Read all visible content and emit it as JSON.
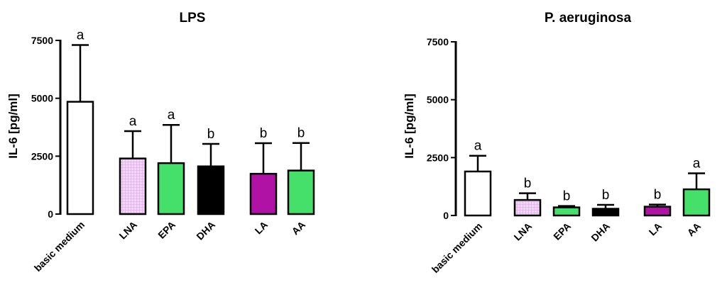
{
  "chart_data": [
    {
      "type": "bar",
      "title": "LPS",
      "ylabel": "IL-6 [pg/ml]",
      "ylim": [
        0,
        7500
      ],
      "yticks": [
        "0",
        "2500",
        "5000",
        "7500"
      ],
      "categories": [
        "basic medium",
        "LNA",
        "EPA",
        "DHA",
        "LA",
        "AA"
      ],
      "values": [
        4850,
        2400,
        2200,
        2060,
        1740,
        1880
      ],
      "errors": [
        2450,
        1180,
        1650,
        970,
        1320,
        1190
      ],
      "significance": [
        "a",
        "a",
        "a",
        "b",
        "b",
        "b"
      ],
      "fill_colors": [
        "#ffffff",
        "pattern-pink-grid",
        "#44e06a",
        "#000000",
        "#b012a6",
        "#44e06a"
      ]
    },
    {
      "type": "bar",
      "title": "P. aeruginosa",
      "ylabel": "IL-6 [pg/ml]",
      "ylim": [
        0,
        7500
      ],
      "yticks": [
        "0",
        "2500",
        "5000",
        "7500"
      ],
      "categories": [
        "basic medium",
        "LNA",
        "EPA",
        "DHA",
        "LA",
        "AA"
      ],
      "values": [
        1900,
        670,
        350,
        290,
        380,
        1130
      ],
      "errors": [
        680,
        290,
        60,
        170,
        90,
        690
      ],
      "significance": [
        "a",
        "b",
        "b",
        "b",
        "b",
        "a"
      ],
      "fill_colors": [
        "#ffffff",
        "pattern-pink-grid",
        "#44e06a",
        "#000000",
        "#b012a6",
        "#44e06a"
      ]
    }
  ]
}
